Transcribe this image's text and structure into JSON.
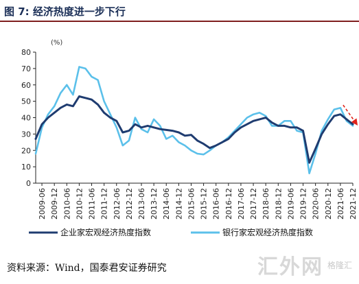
{
  "figure_title": "图 7: 经济热度进一步下行",
  "source_text": "资料来源：Wind，国泰君安证券研究",
  "watermark": {
    "logo": "汇外网",
    "brand": "格隆汇"
  },
  "colors": {
    "series1": "#1f3c70",
    "series2": "#5bc0ea",
    "arrow": "#e0241b",
    "title": "#1b2f57"
  },
  "chart_data": {
    "type": "line",
    "unit_label": "(%)",
    "ylim": [
      0,
      80
    ],
    "yticks": [
      0,
      10,
      20,
      30,
      40,
      50,
      60,
      70,
      80
    ],
    "x_tick_labels": [
      "2009-06",
      "2009-12",
      "2010-06",
      "2010-12",
      "2011-06",
      "2011-12",
      "2012-06",
      "2012-12",
      "2013-06",
      "2013-12",
      "2014-06",
      "2014-12",
      "2015-06",
      "2015-12",
      "2016-06",
      "2016-12",
      "2017-06",
      "2017-12",
      "2018-06",
      "2018-12",
      "2019-06",
      "2019-12",
      "2020-06",
      "2020-12",
      "2021-06",
      "2021-12"
    ],
    "x_start": "2009-03",
    "x_end": "2021-12",
    "grid": false,
    "legend_position": "bottom",
    "series": [
      {
        "name": "企业家宏观经济热度指数",
        "points": [
          [
            "2009-03",
            27
          ],
          [
            "2009-06",
            36
          ],
          [
            "2009-09",
            40
          ],
          [
            "2009-12",
            43
          ],
          [
            "2010-03",
            46
          ],
          [
            "2010-06",
            48
          ],
          [
            "2010-09",
            47
          ],
          [
            "2010-12",
            53
          ],
          [
            "2011-03",
            52
          ],
          [
            "2011-06",
            51
          ],
          [
            "2011-09",
            48
          ],
          [
            "2011-12",
            43
          ],
          [
            "2012-03",
            40
          ],
          [
            "2012-06",
            38
          ],
          [
            "2012-09",
            31
          ],
          [
            "2012-12",
            32
          ],
          [
            "2013-03",
            36
          ],
          [
            "2013-06",
            34
          ],
          [
            "2013-09",
            35
          ],
          [
            "2013-12",
            34
          ],
          [
            "2014-03",
            33
          ],
          [
            "2014-06",
            32.5
          ],
          [
            "2014-09",
            32
          ],
          [
            "2014-12",
            31
          ],
          [
            "2015-03",
            29
          ],
          [
            "2015-06",
            29.5
          ],
          [
            "2015-09",
            26
          ],
          [
            "2015-12",
            24
          ],
          [
            "2016-03",
            21.5
          ],
          [
            "2016-06",
            23
          ],
          [
            "2016-09",
            25
          ],
          [
            "2016-12",
            27
          ],
          [
            "2017-03",
            31
          ],
          [
            "2017-06",
            34
          ],
          [
            "2017-09",
            36
          ],
          [
            "2017-12",
            38
          ],
          [
            "2018-03",
            39
          ],
          [
            "2018-06",
            40
          ],
          [
            "2018-09",
            37
          ],
          [
            "2018-12",
            35
          ],
          [
            "2019-03",
            35
          ],
          [
            "2019-06",
            34
          ],
          [
            "2019-09",
            34
          ],
          [
            "2019-12",
            32
          ],
          [
            "2020-03",
            12.5
          ],
          [
            "2020-06",
            21
          ],
          [
            "2020-09",
            30
          ],
          [
            "2020-12",
            36
          ],
          [
            "2021-03",
            41
          ],
          [
            "2021-06",
            42
          ],
          [
            "2021-09",
            39
          ],
          [
            "2021-12",
            36
          ]
        ]
      },
      {
        "name": "银行家宏观经济热度指数",
        "points": [
          [
            "2009-03",
            18
          ],
          [
            "2009-06",
            34
          ],
          [
            "2009-09",
            42
          ],
          [
            "2009-12",
            47
          ],
          [
            "2010-03",
            55
          ],
          [
            "2010-06",
            60
          ],
          [
            "2010-09",
            54
          ],
          [
            "2010-12",
            71
          ],
          [
            "2011-03",
            70
          ],
          [
            "2011-06",
            65
          ],
          [
            "2011-09",
            63
          ],
          [
            "2011-12",
            50
          ],
          [
            "2012-03",
            42
          ],
          [
            "2012-06",
            34
          ],
          [
            "2012-09",
            23
          ],
          [
            "2012-12",
            26
          ],
          [
            "2013-03",
            40
          ],
          [
            "2013-06",
            33
          ],
          [
            "2013-09",
            31
          ],
          [
            "2013-12",
            39
          ],
          [
            "2014-03",
            35
          ],
          [
            "2014-06",
            27
          ],
          [
            "2014-09",
            29
          ],
          [
            "2014-12",
            25
          ],
          [
            "2015-03",
            23
          ],
          [
            "2015-06",
            20
          ],
          [
            "2015-09",
            18
          ],
          [
            "2015-12",
            17.5
          ],
          [
            "2016-03",
            20
          ],
          [
            "2016-06",
            23
          ],
          [
            "2016-09",
            25
          ],
          [
            "2016-12",
            28
          ],
          [
            "2017-03",
            32
          ],
          [
            "2017-06",
            36
          ],
          [
            "2017-09",
            40
          ],
          [
            "2017-12",
            42
          ],
          [
            "2018-03",
            43
          ],
          [
            "2018-06",
            41
          ],
          [
            "2018-09",
            35
          ],
          [
            "2018-12",
            35
          ],
          [
            "2019-03",
            38
          ],
          [
            "2019-06",
            38
          ],
          [
            "2019-09",
            32
          ],
          [
            "2019-12",
            31
          ],
          [
            "2020-03",
            6
          ],
          [
            "2020-06",
            18
          ],
          [
            "2020-09",
            32
          ],
          [
            "2020-12",
            39
          ],
          [
            "2021-03",
            45
          ],
          [
            "2021-06",
            46
          ],
          [
            "2021-09",
            38
          ],
          [
            "2021-12",
            35
          ]
        ]
      }
    ],
    "annotation": {
      "type": "trend-arrow",
      "from": [
        "2021-06",
        41
      ],
      "to": [
        "2021-12",
        35
      ]
    }
  }
}
